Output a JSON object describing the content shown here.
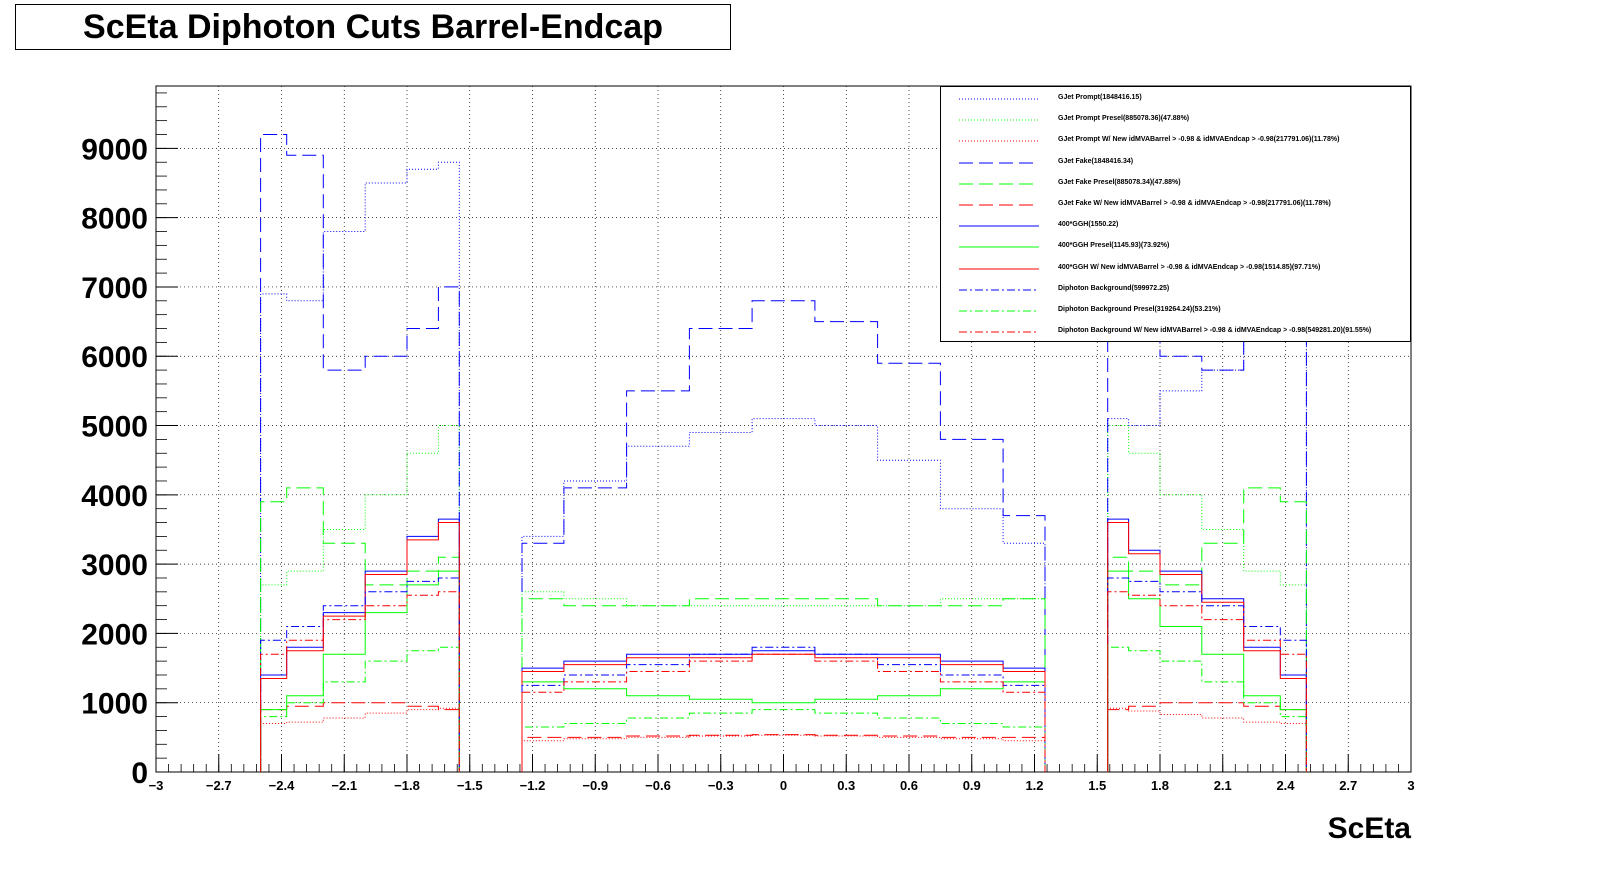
{
  "chart_data": {
    "type": "line",
    "title": "ScEta Diphoton Cuts Barrel-Endcap",
    "xlabel": "ScEta",
    "ylabel": "",
    "xlim": [
      -3,
      3
    ],
    "ylim": [
      0,
      9900
    ],
    "grid": true,
    "legend_position": "top-right",
    "x_ticks": [
      "−3",
      "−2.7",
      "−2.4",
      "−2.1",
      "−1.8",
      "−1.5",
      "−1.2",
      "−0.9",
      "−0.6",
      "−0.3",
      "0",
      "0.3",
      "0.6",
      "0.9",
      "1.2",
      "1.5",
      "1.8",
      "2.1",
      "2.4",
      "2.7",
      "3"
    ],
    "y_ticks": [
      "0",
      "1000",
      "2000",
      "3000",
      "4000",
      "5000",
      "6000",
      "7000",
      "8000",
      "9000"
    ],
    "bin_centers": [
      -2.45,
      -2.3,
      -2.1,
      -1.9,
      -1.7,
      -1.6,
      -1.44,
      -1.2,
      -0.9,
      -0.6,
      -0.3,
      0.0,
      0.3,
      0.6,
      0.9,
      1.2,
      1.44,
      1.6,
      1.7,
      1.9,
      2.1,
      2.3,
      2.45
    ],
    "series": [
      {
        "name": "GJet Prompt(1848416.15)",
        "color": "#0000ff",
        "dash": "1,2",
        "values": [
          6900,
          6800,
          7800,
          8500,
          8700,
          8800,
          null,
          3400,
          4200,
          4700,
          4900,
          5100,
          5000,
          4500,
          3800,
          3300,
          null,
          5100,
          5000,
          5500,
          5800,
          7100,
          7600
        ]
      },
      {
        "name": "GJet Prompt Presel(885078.36)(47.88%)",
        "color": "#00ff00",
        "dash": "1,2",
        "values": [
          2700,
          2900,
          3500,
          4000,
          4600,
          5000,
          null,
          2600,
          2500,
          2400,
          2400,
          2400,
          2400,
          2400,
          2500,
          2500,
          null,
          5000,
          4600,
          4000,
          3500,
          2900,
          2700
        ]
      },
      {
        "name": "GJet Prompt W/ New idMVABarrel > -0.98 & idMVAEndcap > -0.98(217791.06)(11.78%)",
        "color": "#ff0000",
        "dash": "1,2",
        "values": [
          700,
          720,
          780,
          850,
          900,
          920,
          null,
          450,
          480,
          500,
          520,
          530,
          520,
          500,
          480,
          450,
          null,
          920,
          880,
          830,
          780,
          720,
          700
        ]
      },
      {
        "name": "GJet Fake(1848416.34)",
        "color": "#0000ff",
        "dash": "14,6",
        "values": [
          9200,
          8900,
          5800,
          6000,
          6400,
          7000,
          null,
          3300,
          4100,
          5500,
          6400,
          6800,
          6500,
          5900,
          4800,
          3700,
          null,
          7000,
          6400,
          6000,
          5800,
          8900,
          9200
        ]
      },
      {
        "name": "GJet Fake Presel(885078.34)(47.88%)",
        "color": "#00ff00",
        "dash": "14,6",
        "values": [
          3900,
          4100,
          3300,
          2700,
          2900,
          3100,
          null,
          2500,
          2400,
          2400,
          2500,
          2500,
          2500,
          2400,
          2400,
          2500,
          null,
          3100,
          2900,
          2700,
          3300,
          4100,
          3900
        ]
      },
      {
        "name": "GJet Fake W/ New idMVABarrel > -0.98 & idMVAEndcap > -0.98(217791.06)(11.78%)",
        "color": "#ff0000",
        "dash": "14,6",
        "values": [
          900,
          950,
          1000,
          1000,
          950,
          900,
          null,
          500,
          500,
          520,
          530,
          540,
          530,
          520,
          500,
          500,
          null,
          900,
          950,
          1000,
          1000,
          950,
          900
        ]
      },
      {
        "name": "400*GGH(1550.22)",
        "color": "#0000ff",
        "dash": "",
        "values": [
          1400,
          1800,
          2300,
          2900,
          3400,
          3650,
          null,
          1500,
          1600,
          1700,
          1700,
          1750,
          1700,
          1700,
          1600,
          1500,
          null,
          3650,
          3200,
          2900,
          2500,
          1800,
          1400
        ]
      },
      {
        "name": "400*GGH Presel(1145.93)(73.92%)",
        "color": "#00ff00",
        "dash": "",
        "values": [
          900,
          1100,
          1700,
          2300,
          2700,
          2900,
          null,
          1300,
          1200,
          1100,
          1050,
          1000,
          1050,
          1100,
          1200,
          1300,
          null,
          2900,
          2500,
          2100,
          1700,
          1100,
          900
        ]
      },
      {
        "name": "400*GGH W/ New idMVABarrel > -0.98 & idMVAEndcap > -0.98(1514.85)(97.71%)",
        "color": "#ff0000",
        "dash": "",
        "values": [
          1350,
          1750,
          2250,
          2850,
          3350,
          3600,
          null,
          1450,
          1550,
          1650,
          1650,
          1700,
          1650,
          1650,
          1550,
          1450,
          null,
          3600,
          3150,
          2850,
          2450,
          1750,
          1350
        ]
      },
      {
        "name": "Diphoton Background(599972.25)",
        "color": "#0000ff",
        "dash": "8,3,2,3",
        "values": [
          1900,
          2100,
          2400,
          2600,
          2750,
          2800,
          null,
          1250,
          1400,
          1550,
          1700,
          1800,
          1700,
          1550,
          1400,
          1250,
          null,
          2800,
          2750,
          2600,
          2400,
          2100,
          1900
        ]
      },
      {
        "name": "Diphoton Background Presel(319264.24)(53.21%)",
        "color": "#00ff00",
        "dash": "8,3,2,3",
        "values": [
          800,
          1000,
          1300,
          1600,
          1750,
          1800,
          null,
          650,
          700,
          780,
          850,
          900,
          850,
          780,
          700,
          650,
          null,
          1800,
          1750,
          1600,
          1300,
          1000,
          800
        ]
      },
      {
        "name": "Diphoton Background W/ New idMVABarrel > -0.98 & idMVAEndcap > -0.98(549281.20)(91.55%)",
        "color": "#ff0000",
        "dash": "8,3,2,3",
        "values": [
          1700,
          1900,
          2200,
          2400,
          2550,
          2600,
          null,
          1150,
          1300,
          1450,
          1600,
          1700,
          1600,
          1450,
          1300,
          1150,
          null,
          2600,
          2550,
          2400,
          2200,
          1900,
          1700
        ]
      }
    ]
  }
}
